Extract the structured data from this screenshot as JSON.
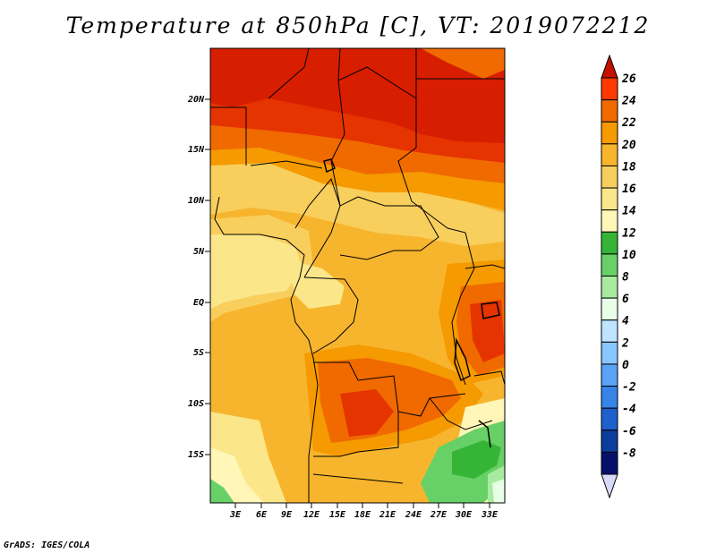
{
  "title": "Temperature at 850hPa [C], VT: 2019072212",
  "credit": "GrADS: IGES/COLA",
  "map": {
    "lat_labels": [
      "20N",
      "15N",
      "10N",
      "5N",
      "EQ",
      "5S",
      "10S",
      "15S"
    ],
    "lon_labels": [
      "3E",
      "6E",
      "9E",
      "12E",
      "15E",
      "18E",
      "21E",
      "24E",
      "27E",
      "30E",
      "33E"
    ]
  },
  "colorbar": {
    "labels": [
      "26",
      "24",
      "22",
      "20",
      "18",
      "16",
      "14",
      "12",
      "10",
      "8",
      "6",
      "4",
      "2",
      "0",
      "-2",
      "-4",
      "-6",
      "-8"
    ],
    "colors": [
      "#ff3a00",
      "#f06a00",
      "#f59a00",
      "#f7b52e",
      "#f8cf5c",
      "#fbe68a",
      "#fff6b8",
      "#36b436",
      "#67d067",
      "#a8eba0",
      "#e7ffe7",
      "#bfe4ff",
      "#88c6ff",
      "#5aa2f5",
      "#3684e6",
      "#1e60cc",
      "#0c3c9c",
      "#06106a"
    ],
    "top_arrow_color": "#c21200",
    "bottom_arrow_color": "#d8d8f8"
  },
  "palette": {
    "t14": "#fff6b8",
    "t16": "#fbe68a",
    "t18": "#f8cf5c",
    "t20": "#f7b52e",
    "t22": "#f59a00",
    "t24": "#f06a00",
    "t26": "#e63400",
    "t28": "#d81e00",
    "g12": "#36b436",
    "g10": "#67d067",
    "g8": "#a8eba0",
    "w6": "#e7ffe7"
  }
}
